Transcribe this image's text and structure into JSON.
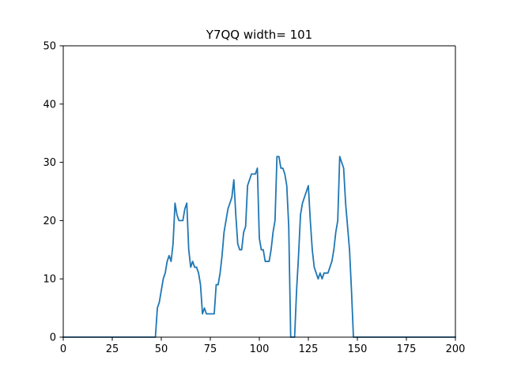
{
  "chart_data": {
    "type": "line",
    "title": "Y7QQ width= 101",
    "xlabel": "",
    "ylabel": "",
    "xlim": [
      0,
      200
    ],
    "ylim": [
      0,
      50
    ],
    "x_ticks": [
      0,
      25,
      50,
      75,
      100,
      125,
      150,
      175,
      200
    ],
    "y_ticks": [
      0,
      10,
      20,
      30,
      40,
      50
    ],
    "grid": false,
    "legend": "none",
    "series": [
      {
        "color": "#1f77b4",
        "x": [
          0,
          47,
          48,
          49,
          50,
          51,
          52,
          53,
          54,
          55,
          56,
          57,
          58,
          59,
          60,
          61,
          62,
          63,
          64,
          65,
          66,
          67,
          68,
          69,
          70,
          71,
          72,
          73,
          74,
          75,
          76,
          77,
          78,
          79,
          80,
          81,
          82,
          83,
          84,
          85,
          86,
          87,
          88,
          89,
          90,
          91,
          92,
          93,
          94,
          95,
          96,
          97,
          98,
          99,
          100,
          101,
          102,
          103,
          104,
          105,
          106,
          107,
          108,
          109,
          110,
          111,
          112,
          113,
          114,
          115,
          116,
          117,
          118,
          119,
          120,
          121,
          122,
          123,
          124,
          125,
          126,
          127,
          128,
          129,
          130,
          131,
          132,
          133,
          134,
          135,
          136,
          137,
          138,
          139,
          140,
          141,
          142,
          143,
          144,
          145,
          146,
          147,
          148,
          200
        ],
        "y": [
          0,
          0,
          5,
          6,
          8,
          10,
          11,
          13,
          14,
          13,
          16,
          23,
          21,
          20,
          20,
          20,
          22,
          23,
          15,
          12,
          13,
          12,
          12,
          11,
          9,
          4,
          5,
          4,
          4,
          4,
          4,
          4,
          9,
          9,
          11,
          14,
          18,
          20,
          22,
          23,
          24,
          27,
          21,
          16,
          15,
          15,
          18,
          19,
          26,
          27,
          28,
          28,
          28,
          29,
          17,
          15,
          15,
          13,
          13,
          13,
          15,
          18,
          20,
          31,
          31,
          29,
          29,
          28,
          26,
          19,
          0,
          0,
          0,
          8,
          14,
          21,
          23,
          24,
          25,
          26,
          20,
          15,
          12,
          11,
          10,
          11,
          10,
          11,
          11,
          11,
          12,
          13,
          15,
          18,
          20,
          31,
          30,
          29,
          23,
          19,
          15,
          8,
          0,
          0
        ]
      }
    ]
  }
}
